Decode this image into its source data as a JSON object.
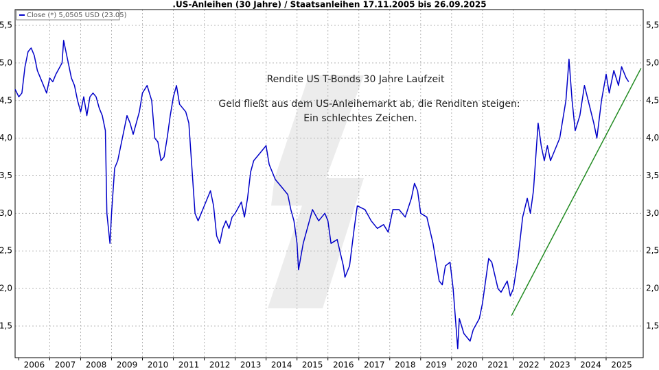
{
  "chart_data": {
    "type": "line",
    "title": ".US-Anleihen (30 Jahre) / Staatsanleihen 17.11.2005 bis 26.09.2025",
    "annotations": [
      "Rendite US T-Bonds 30 Jahre Laufzeit",
      "Geld fließt aus dem US-Anleihemarkt ab, die Renditen steigen:",
      "Ein schlechtes Zeichen."
    ],
    "x": [
      2005.88,
      2006.0,
      2006.1,
      2006.2,
      2006.3,
      2006.4,
      2006.5,
      2006.6,
      2006.7,
      2006.8,
      2006.9,
      2007.0,
      2007.1,
      2007.2,
      2007.4,
      2007.45,
      2007.55,
      2007.6,
      2007.7,
      2007.8,
      2007.9,
      2008.0,
      2008.1,
      2008.2,
      2008.3,
      2008.4,
      2008.5,
      2008.6,
      2008.7,
      2008.8,
      2008.85,
      2008.95,
      2009.0,
      2009.1,
      2009.2,
      2009.4,
      2009.5,
      2009.6,
      2009.7,
      2009.8,
      2009.9,
      2010.0,
      2010.15,
      2010.3,
      2010.4,
      2010.5,
      2010.6,
      2010.7,
      2010.8,
      2010.9,
      2011.0,
      2011.1,
      2011.2,
      2011.4,
      2011.5,
      2011.6,
      2011.7,
      2011.8,
      2011.9,
      2012.0,
      2012.2,
      2012.3,
      2012.4,
      2012.5,
      2012.6,
      2012.7,
      2012.8,
      2012.9,
      2013.0,
      2013.2,
      2013.3,
      2013.4,
      2013.5,
      2013.6,
      2013.8,
      2013.9,
      2014.0,
      2014.1,
      2014.3,
      2014.5,
      2014.7,
      2014.8,
      2014.9,
      2015.0,
      2015.05,
      2015.2,
      2015.4,
      2015.5,
      2015.7,
      2015.9,
      2016.0,
      2016.1,
      2016.3,
      2016.5,
      2016.55,
      2016.7,
      2016.85,
      2016.95,
      2017.2,
      2017.4,
      2017.6,
      2017.8,
      2017.95,
      2018.1,
      2018.3,
      2018.5,
      2018.7,
      2018.8,
      2018.9,
      2019.0,
      2019.2,
      2019.4,
      2019.6,
      2019.7,
      2019.8,
      2019.95,
      2020.05,
      2020.2,
      2020.25,
      2020.4,
      2020.6,
      2020.7,
      2020.9,
      2021.0,
      2021.2,
      2021.3,
      2021.5,
      2021.6,
      2021.8,
      2021.9,
      2022.0,
      2022.15,
      2022.3,
      2022.45,
      2022.55,
      2022.65,
      2022.8,
      2022.9,
      2023.0,
      2023.1,
      2023.2,
      2023.4,
      2023.5,
      2023.7,
      2023.8,
      2023.9,
      2024.0,
      2024.15,
      2024.3,
      2024.45,
      2024.6,
      2024.7,
      2024.85,
      2025.0,
      2025.1,
      2025.25,
      2025.4,
      2025.5,
      2025.65,
      2025.73
    ],
    "series": [
      {
        "name": "Close (*) 5,0505 USD (23.05)",
        "color": "#0000c8",
        "values": [
          4.65,
          4.55,
          4.6,
          4.95,
          5.15,
          5.2,
          5.1,
          4.9,
          4.8,
          4.7,
          4.6,
          4.8,
          4.75,
          4.85,
          5.0,
          5.3,
          5.1,
          5.0,
          4.8,
          4.7,
          4.5,
          4.35,
          4.55,
          4.3,
          4.55,
          4.6,
          4.55,
          4.4,
          4.3,
          4.1,
          3.0,
          2.6,
          3.0,
          3.6,
          3.7,
          4.1,
          4.3,
          4.2,
          4.05,
          4.2,
          4.35,
          4.6,
          4.7,
          4.5,
          4.0,
          3.95,
          3.7,
          3.75,
          4.0,
          4.3,
          4.55,
          4.7,
          4.45,
          4.35,
          4.2,
          3.6,
          3.0,
          2.9,
          3.0,
          3.1,
          3.3,
          3.1,
          2.7,
          2.6,
          2.8,
          2.9,
          2.8,
          2.95,
          3.0,
          3.15,
          2.95,
          3.2,
          3.55,
          3.7,
          3.8,
          3.85,
          3.9,
          3.65,
          3.45,
          3.35,
          3.25,
          3.05,
          2.9,
          2.6,
          2.25,
          2.6,
          2.9,
          3.05,
          2.9,
          3.0,
          2.9,
          2.6,
          2.65,
          2.3,
          2.15,
          2.3,
          2.8,
          3.1,
          3.05,
          2.9,
          2.8,
          2.85,
          2.75,
          3.05,
          3.05,
          2.95,
          3.2,
          3.4,
          3.3,
          3.0,
          2.95,
          2.6,
          2.1,
          2.05,
          2.3,
          2.35,
          2.0,
          1.2,
          1.6,
          1.4,
          1.3,
          1.45,
          1.6,
          1.8,
          2.4,
          2.35,
          2.0,
          1.95,
          2.1,
          1.9,
          2.0,
          2.4,
          2.95,
          3.2,
          3.0,
          3.3,
          4.2,
          3.9,
          3.7,
          3.9,
          3.7,
          3.9,
          4.0,
          4.5,
          5.05,
          4.5,
          4.1,
          4.3,
          4.7,
          4.45,
          4.2,
          4.0,
          4.5,
          4.85,
          4.6,
          4.9,
          4.7,
          4.95,
          4.8,
          4.75
        ]
      }
    ],
    "trendline": {
      "x": [
        2021.94,
        2026.13
      ],
      "values": [
        1.64,
        4.93
      ],
      "color": "#228b22"
    },
    "xlim": [
      2005.88,
      2026.2
    ],
    "xticks": [
      2006,
      2007,
      2008,
      2009,
      2010,
      2011,
      2012,
      2013,
      2014,
      2015,
      2016,
      2017,
      2018,
      2019,
      2020,
      2021,
      2022,
      2023,
      2024,
      2025
    ],
    "ylim": [
      1.08,
      5.71
    ],
    "yticks": [
      {
        "value": 1.5,
        "label": "1,5"
      },
      {
        "value": 2.0,
        "label": "2,0"
      },
      {
        "value": 2.5,
        "label": "2,5"
      },
      {
        "value": 3.0,
        "label": "3,0"
      },
      {
        "value": 3.5,
        "label": "3,5"
      },
      {
        "value": 4.0,
        "label": "4,0"
      },
      {
        "value": 4.5,
        "label": "4,5"
      },
      {
        "value": 5.0,
        "label": "5,0"
      },
      {
        "value": 5.5,
        "label": "5,5"
      }
    ],
    "grid": true
  }
}
